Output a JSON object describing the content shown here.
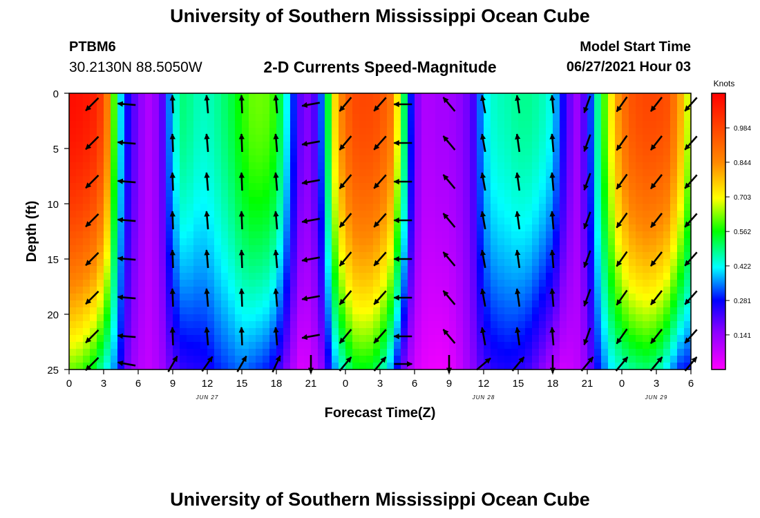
{
  "header": {
    "title": "University of Southern Mississippi Ocean Cube",
    "station": "PTBM6",
    "coords": "30.2130N  88.5050W",
    "subtitle": "2-D Currents Speed-Magnitude",
    "start_label": "Model Start Time",
    "start_value": "06/27/2021 Hour 03"
  },
  "footer": {
    "title": "University of Southern Mississippi Ocean Cube"
  },
  "chart_data": {
    "type": "heatmap",
    "title": "2-D Currents Speed-Magnitude",
    "xlabel": "Forecast Time(Z)",
    "ylabel": "Depth (ft)",
    "x_range_hours": [
      0,
      54
    ],
    "y_range_ft": [
      0,
      25
    ],
    "y_reversed": true,
    "x_tick_labels": [
      "0",
      "3",
      "6",
      "9",
      "12",
      "15",
      "18",
      "21",
      "0",
      "3",
      "6",
      "9",
      "12",
      "15",
      "18",
      "21",
      "0",
      "3",
      "6"
    ],
    "y_tick_values": [
      0,
      5,
      10,
      15,
      20,
      25
    ],
    "date_labels": [
      {
        "text": "JUN 27",
        "hour": 12
      },
      {
        "text": "JUN 28",
        "hour": 36
      },
      {
        "text": "JUN 29",
        "hour": 51
      }
    ],
    "colorbar": {
      "unit": "Knots",
      "range": [
        0,
        1.125
      ],
      "ticks": [
        "0.984",
        "0.844",
        "0.703",
        "0.562",
        "0.422",
        "0.281",
        "0.141"
      ],
      "tick_values": [
        0.984,
        0.844,
        0.703,
        0.562,
        0.422,
        0.281,
        0.141
      ]
    },
    "speed_profile_surface": [
      [
        0,
        1.1
      ],
      [
        1,
        1.09
      ],
      [
        2,
        1.07
      ],
      [
        3,
        0.98
      ],
      [
        3.5,
        0.8
      ],
      [
        4,
        0.55
      ],
      [
        4.5,
        0.4
      ],
      [
        5,
        0.28
      ],
      [
        6,
        0.16
      ],
      [
        7,
        0.1
      ],
      [
        8,
        0.18
      ],
      [
        9,
        0.42
      ],
      [
        10,
        0.5
      ],
      [
        11,
        0.46
      ],
      [
        12,
        0.45
      ],
      [
        13,
        0.48
      ],
      [
        14,
        0.52
      ],
      [
        15,
        0.58
      ],
      [
        16,
        0.62
      ],
      [
        17,
        0.62
      ],
      [
        18,
        0.58
      ],
      [
        19,
        0.4
      ],
      [
        20,
        0.2
      ],
      [
        21,
        0.15
      ],
      [
        22,
        0.35
      ],
      [
        23,
        0.72
      ],
      [
        24,
        0.92
      ],
      [
        25,
        0.98
      ],
      [
        26,
        0.98
      ],
      [
        27,
        0.96
      ],
      [
        28,
        0.88
      ],
      [
        29,
        0.55
      ],
      [
        30,
        0.18
      ],
      [
        31,
        0.1
      ],
      [
        32,
        0.12
      ],
      [
        33,
        0.12
      ],
      [
        34,
        0.15
      ],
      [
        35,
        0.2
      ],
      [
        36,
        0.4
      ],
      [
        37,
        0.45
      ],
      [
        38,
        0.46
      ],
      [
        39,
        0.48
      ],
      [
        40,
        0.48
      ],
      [
        41,
        0.46
      ],
      [
        42,
        0.42
      ],
      [
        43,
        0.25
      ],
      [
        44,
        0.12
      ],
      [
        45,
        0.24
      ],
      [
        46,
        0.5
      ],
      [
        47,
        0.7
      ],
      [
        48,
        0.88
      ],
      [
        49,
        0.96
      ],
      [
        50,
        0.98
      ],
      [
        51,
        0.98
      ],
      [
        52,
        0.96
      ],
      [
        53,
        0.82
      ],
      [
        54,
        0.62
      ]
    ],
    "speed_profile_bottom": [
      [
        0,
        0.62
      ],
      [
        1,
        0.6
      ],
      [
        2,
        0.55
      ],
      [
        3,
        0.45
      ],
      [
        4,
        0.35
      ],
      [
        5,
        0.18
      ],
      [
        6,
        0.1
      ],
      [
        7,
        0.08
      ],
      [
        8,
        0.12
      ],
      [
        9,
        0.2
      ],
      [
        10,
        0.24
      ],
      [
        11,
        0.25
      ],
      [
        12,
        0.26
      ],
      [
        13,
        0.3
      ],
      [
        14,
        0.32
      ],
      [
        15,
        0.34
      ],
      [
        16,
        0.32
      ],
      [
        17,
        0.3
      ],
      [
        18,
        0.25
      ],
      [
        19,
        0.15
      ],
      [
        20,
        0.05
      ],
      [
        21,
        0.06
      ],
      [
        22,
        0.15
      ],
      [
        23,
        0.35
      ],
      [
        24,
        0.48
      ],
      [
        25,
        0.55
      ],
      [
        26,
        0.55
      ],
      [
        27,
        0.5
      ],
      [
        28,
        0.36
      ],
      [
        29,
        0.18
      ],
      [
        30,
        0.06
      ],
      [
        31,
        0.03
      ],
      [
        32,
        0.02
      ],
      [
        33,
        0.03
      ],
      [
        34,
        0.08
      ],
      [
        35,
        0.15
      ],
      [
        36,
        0.22
      ],
      [
        37,
        0.25
      ],
      [
        38,
        0.26
      ],
      [
        39,
        0.25
      ],
      [
        40,
        0.22
      ],
      [
        41,
        0.16
      ],
      [
        42,
        0.1
      ],
      [
        43,
        0.06
      ],
      [
        44,
        0.08
      ],
      [
        45,
        0.15
      ],
      [
        46,
        0.3
      ],
      [
        47,
        0.4
      ],
      [
        48,
        0.45
      ],
      [
        49,
        0.48
      ],
      [
        50,
        0.5
      ],
      [
        51,
        0.48
      ],
      [
        52,
        0.4
      ],
      [
        53,
        0.3
      ],
      [
        54,
        0.28
      ]
    ],
    "vectors": {
      "hours": [
        2,
        5,
        9,
        12,
        15,
        18,
        21,
        24,
        27,
        29,
        33,
        36,
        39,
        42,
        45,
        48,
        51,
        54
      ],
      "depths_ft": [
        1,
        4.5,
        8,
        11.5,
        15,
        18.5,
        22,
        24.5
      ],
      "direction_deg_by_hour": [
        225,
        275,
        358,
        355,
        358,
        355,
        260,
        220,
        222,
        270,
        320,
        350,
        352,
        355,
        200,
        215,
        218,
        222
      ],
      "bottom_direction_deg": [
        225,
        280,
        30,
        35,
        30,
        25,
        180,
        40,
        40,
        90,
        180,
        50,
        40,
        180,
        40,
        40,
        40,
        40
      ]
    }
  }
}
